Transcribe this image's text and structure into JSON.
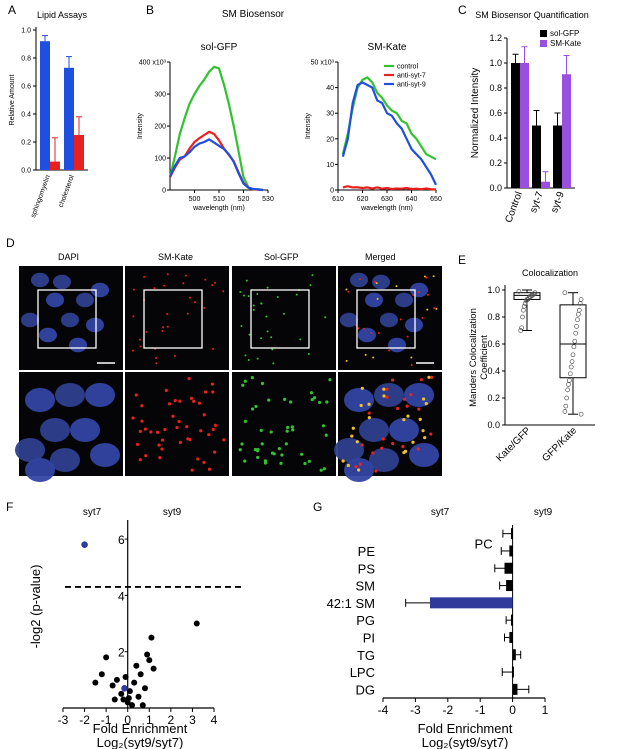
{
  "panel_labels": {
    "a": "A",
    "b": "B",
    "c": "C",
    "d": "D",
    "e": "E",
    "f": "F",
    "g": "G"
  },
  "colors": {
    "blue": "#1f4fe0",
    "red": "#e8211f",
    "green": "#31c22f",
    "black": "#000000",
    "purple": "#9a4fe0",
    "navy": "#303a9a"
  },
  "chart_data": [
    {
      "id": "A",
      "type": "bar",
      "title": "Lipid Assays",
      "ylabel": "Relative Amount",
      "ylim": [
        0,
        1.0
      ],
      "yticks": [
        "0.0",
        "0.2",
        "0.4",
        "0.6",
        "0.8",
        "1.0"
      ],
      "categories": [
        "sphingomyelin",
        "cholesterol"
      ],
      "series": [
        {
          "color": "#1f4fe0",
          "values": [
            0.92,
            0.73
          ],
          "errors": [
            0.04,
            0.08
          ]
        },
        {
          "color": "#e8211f",
          "values": [
            0.06,
            0.25
          ],
          "errors": [
            0.17,
            0.13
          ]
        }
      ]
    },
    {
      "id": "B1",
      "type": "line",
      "title": "sol-GFP",
      "ylabel": "Intensity",
      "xlabel": "wavelength (nm)",
      "xlim": [
        490,
        530
      ],
      "ylim": [
        0,
        400
      ],
      "xticks": [
        "500",
        "510",
        "520",
        "530"
      ],
      "yticks": [
        "0",
        "100",
        "200",
        "300",
        "400 x10³"
      ],
      "series": [
        {
          "color": "#31c22f",
          "x": [
            490,
            492,
            494,
            496,
            498,
            500,
            502,
            504,
            506,
            508,
            510,
            512,
            514,
            516,
            518,
            520,
            522,
            524,
            526,
            528
          ],
          "values": [
            40,
            105,
            175,
            225,
            270,
            300,
            325,
            345,
            370,
            385,
            380,
            330,
            270,
            200,
            120,
            40,
            8,
            2,
            2,
            0
          ]
        },
        {
          "color": "#e8211f",
          "x": [
            490,
            492,
            494,
            496,
            498,
            500,
            502,
            504,
            506,
            508,
            510,
            512,
            514,
            516,
            518,
            520,
            522,
            524,
            526,
            528
          ],
          "values": [
            40,
            70,
            95,
            105,
            130,
            150,
            162,
            172,
            182,
            175,
            155,
            130,
            110,
            90,
            55,
            22,
            8,
            2,
            1,
            0
          ]
        },
        {
          "color": "#1f4fe0",
          "x": [
            490,
            492,
            494,
            496,
            498,
            500,
            502,
            504,
            506,
            508,
            510,
            512,
            514,
            516,
            518,
            520,
            522,
            524,
            526,
            528
          ],
          "values": [
            42,
            75,
            100,
            105,
            118,
            135,
            145,
            150,
            158,
            148,
            138,
            128,
            112,
            88,
            52,
            20,
            7,
            3,
            2,
            0
          ]
        }
      ]
    },
    {
      "id": "B2",
      "type": "line",
      "title": "SM-Kate",
      "ylabel": "Intensity",
      "xlabel": "wavelength (nm)",
      "xlim": [
        610,
        650
      ],
      "ylim": [
        0,
        50
      ],
      "xticks": [
        "610",
        "620",
        "630",
        "640",
        "650"
      ],
      "yticks": [
        "0",
        "10",
        "20",
        "30",
        "40",
        "50 x10³"
      ],
      "legend": [
        "control",
        "anti-syt-7",
        "anti-syt-9"
      ],
      "series": [
        {
          "color": "#31c22f",
          "x": [
            612,
            614,
            616,
            618,
            620,
            622,
            624,
            626,
            628,
            630,
            632,
            634,
            636,
            638,
            640,
            642,
            644,
            646,
            648,
            650
          ],
          "values": [
            14,
            22,
            32,
            40,
            43,
            44,
            42,
            38,
            36,
            33,
            31,
            30,
            27,
            26,
            22,
            20,
            17,
            14,
            13,
            12
          ]
        },
        {
          "color": "#e8211f",
          "x": [
            612,
            614,
            616,
            618,
            620,
            622,
            624,
            626,
            628,
            630,
            632,
            634,
            636,
            638,
            640,
            642,
            644,
            646,
            648,
            650
          ],
          "values": [
            1,
            1.5,
            1,
            1,
            0.8,
            1,
            0.6,
            1,
            0.5,
            0.8,
            0.4,
            0.6,
            0.5,
            0.8,
            0.4,
            0.5,
            0.3,
            0.6,
            0.3,
            0.2
          ]
        },
        {
          "color": "#1f4fe0",
          "x": [
            612,
            614,
            616,
            618,
            620,
            622,
            624,
            626,
            628,
            630,
            632,
            634,
            636,
            638,
            640,
            642,
            644,
            646,
            648,
            650
          ],
          "values": [
            13,
            20,
            34,
            41,
            42,
            41,
            40,
            35,
            34,
            30,
            29,
            26,
            24,
            20,
            16,
            14,
            12,
            9,
            6,
            2
          ]
        }
      ]
    },
    {
      "id": "C",
      "type": "bar",
      "title": "SM Biosensor Quantification",
      "ylabel": "Normalized Intensity",
      "ylim": [
        0,
        1.2
      ],
      "yticks": [
        "0.0",
        "0.2",
        "0.4",
        "0.6",
        "0.8",
        "1.0",
        "1.2"
      ],
      "categories": [
        "Control",
        "syt-7",
        "syt-9"
      ],
      "legend": [
        "sol-GFP",
        "SM-Kate"
      ],
      "series": [
        {
          "name": "sol-GFP",
          "color": "#000000",
          "values": [
            1.0,
            0.5,
            0.5
          ],
          "errors": [
            0.07,
            0.12,
            0.1
          ]
        },
        {
          "name": "SM-Kate",
          "color": "#9a4fe0",
          "values": [
            1.0,
            0.05,
            0.91
          ],
          "errors": [
            0.13,
            0.08,
            0.15
          ]
        }
      ]
    },
    {
      "id": "E",
      "type": "box",
      "title": "Colocalization",
      "ylabel": "Manders Colocalization Coefficient",
      "ylim": [
        0,
        1.0
      ],
      "yticks": [
        "0.0",
        "0.2",
        "0.4",
        "0.6",
        "0.8",
        "1.0"
      ],
      "categories": [
        "Kate/GFP",
        "GFP/Kate"
      ],
      "boxes": [
        {
          "q1": 0.93,
          "median": 0.96,
          "q3": 0.98,
          "min": 0.7,
          "max": 1.0,
          "points": [
            0.99,
            0.98,
            0.97,
            0.97,
            0.96,
            0.96,
            0.95,
            0.95,
            0.94,
            0.93,
            0.93,
            0.92,
            0.9,
            0.88,
            0.85,
            0.8,
            0.72,
            0.7
          ]
        },
        {
          "q1": 0.35,
          "median": 0.6,
          "q3": 0.89,
          "min": 0.08,
          "max": 0.98,
          "points": [
            0.98,
            0.93,
            0.9,
            0.85,
            0.82,
            0.78,
            0.73,
            0.68,
            0.62,
            0.58,
            0.52,
            0.47,
            0.43,
            0.38,
            0.33,
            0.3,
            0.26,
            0.2,
            0.14,
            0.1,
            0.08
          ]
        }
      ]
    },
    {
      "id": "F",
      "type": "scatter",
      "xlabel_line1": "Fold Enrichment",
      "xlabel_line2": "Log₂(syt9/syt7)",
      "ylabel": "-log2 (p-value)",
      "xlim": [
        -3,
        4
      ],
      "ylim": [
        0,
        6.5
      ],
      "xticks": [
        "-3",
        "-2",
        "-1",
        "0",
        "1",
        "2",
        "3",
        "4"
      ],
      "ytick_labels": [
        "2",
        "4",
        "6"
      ],
      "side_labels": [
        "syt7",
        "syt9"
      ],
      "threshold": 4.3,
      "points_black": [
        [
          -1.2,
          1.2
        ],
        [
          -1.0,
          1.8
        ],
        [
          -1.5,
          0.9
        ],
        [
          -0.7,
          0.8
        ],
        [
          -0.5,
          1.0
        ],
        [
          -0.3,
          0.5
        ],
        [
          -0.2,
          0.3
        ],
        [
          0,
          0.2
        ],
        [
          0.1,
          0.6
        ],
        [
          0.3,
          0.9
        ],
        [
          0.5,
          0.4
        ],
        [
          0.6,
          1.2
        ],
        [
          0.8,
          0.7
        ],
        [
          1.0,
          1.7
        ],
        [
          1.1,
          2.5
        ],
        [
          1.2,
          1.4
        ],
        [
          0.9,
          1.9
        ],
        [
          0.4,
          1.5
        ],
        [
          -0.1,
          1.1
        ],
        [
          0.2,
          0.1
        ],
        [
          3.2,
          3.0
        ],
        [
          -0.6,
          0.3
        ],
        [
          0.7,
          0.1
        ],
        [
          0.05,
          0.35
        ]
      ],
      "points_blue": [
        [
          -2.0,
          5.8
        ],
        [
          -0.15,
          0.7
        ]
      ]
    },
    {
      "id": "G",
      "type": "bar",
      "orientation": "horizontal",
      "xlabel_line1": "Fold Enrichment",
      "xlabel_line2": "Log₂(syt9/syt7)",
      "xlim": [
        -4,
        1
      ],
      "xticks": [
        "-4",
        "-3",
        "-2",
        "-1",
        "0",
        "1"
      ],
      "side_labels": [
        "syt7",
        "syt9"
      ],
      "categories": [
        "PC",
        "PE",
        "PS",
        "SM",
        "42:1 SM",
        "PG",
        "PI",
        "TG",
        "LPC",
        "DG"
      ],
      "values": [
        -0.05,
        -0.1,
        -0.25,
        -0.2,
        -2.55,
        -0.05,
        -0.1,
        0.1,
        -0.02,
        0.15
      ],
      "errors": [
        0.25,
        0.25,
        0.3,
        0.2,
        0.75,
        0.15,
        0.15,
        0.15,
        0.3,
        0.35
      ],
      "highlight": "42:1 SM"
    }
  ],
  "microscopy": {
    "columns": [
      "DAPI",
      "SM-Kate",
      "Sol-GFP",
      "Merged"
    ],
    "title": "D"
  }
}
